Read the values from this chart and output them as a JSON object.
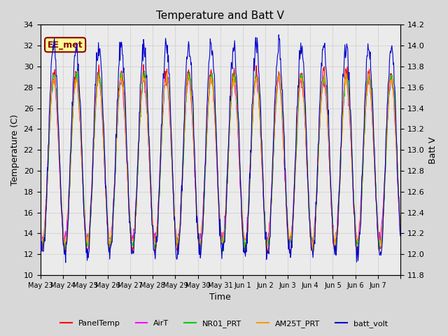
{
  "title": "Temperature and Batt V",
  "xlabel": "Time",
  "ylabel_left": "Temperature (C)",
  "ylabel_right": "Batt V",
  "ylim_left": [
    10,
    34
  ],
  "ylim_right": [
    11.8,
    14.2
  ],
  "xlim": [
    0,
    16
  ],
  "xtick_positions": [
    0,
    1,
    2,
    3,
    4,
    5,
    6,
    7,
    8,
    9,
    10,
    11,
    12,
    13,
    14,
    15,
    16
  ],
  "xtick_labels": [
    "May 23",
    "May 24",
    "May 25",
    "May 26",
    "May 27",
    "May 28",
    "May 29",
    "May 30",
    "May 31",
    "Jun 1",
    "Jun 2",
    "Jun 3",
    "Jun 4",
    "Jun 5",
    "Jun 6",
    "Jun 7",
    ""
  ],
  "yticks_left": [
    10,
    12,
    14,
    16,
    18,
    20,
    22,
    24,
    26,
    28,
    30,
    32,
    34
  ],
  "yticks_right": [
    11.8,
    12.0,
    12.2,
    12.4,
    12.6,
    12.8,
    13.0,
    13.2,
    13.4,
    13.6,
    13.8,
    14.0,
    14.2
  ],
  "annotation_text": "EE_met",
  "legend_entries": [
    {
      "label": "PanelTemp",
      "color": "#ff0000"
    },
    {
      "label": "AirT",
      "color": "#ff00ff"
    },
    {
      "label": "NR01_PRT",
      "color": "#00cc00"
    },
    {
      "label": "AM25T_PRT",
      "color": "#ff9900"
    },
    {
      "label": "batt_volt",
      "color": "#0000cc"
    }
  ],
  "grid_color": "#cccccc",
  "fig_bg_color": "#d8d8d8",
  "plot_bg_color": "#ebebeb"
}
